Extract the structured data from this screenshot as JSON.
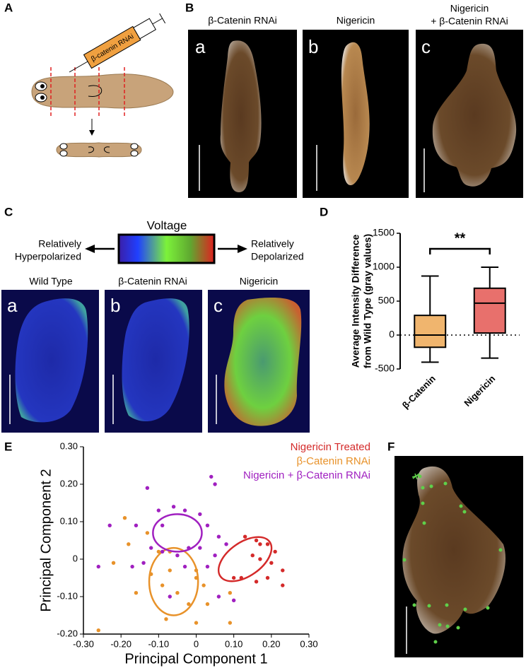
{
  "panels": {
    "A": {
      "label": "A",
      "syringe_label": "β-catenin RNAi"
    },
    "B": {
      "label": "B",
      "titles": [
        [
          "β-Catenin RNAi"
        ],
        [
          "Nigericin"
        ],
        [
          "Nigericin",
          "+ β-Catenin RNAi"
        ]
      ],
      "sublabels": [
        "a",
        "b",
        "c"
      ]
    },
    "C": {
      "label": "C",
      "bar_title": "Voltage",
      "left": [
        "Relatively",
        "Hyperpolarized"
      ],
      "right": [
        "Relatively",
        "Depolarized"
      ],
      "titles": [
        "Wild Type",
        "β-Catenin RNAi",
        "Nigericin"
      ],
      "sublabels": [
        "a",
        "b",
        "c"
      ]
    },
    "D": {
      "label": "D"
    },
    "E": {
      "label": "E"
    },
    "F": {
      "label": "F"
    }
  },
  "chart_data": [
    {
      "type": "box",
      "ylabel": [
        "Average Intensity Difference",
        "from Wild Type  (gray values)"
      ],
      "categories": [
        "β-Catenin",
        "Nigericin"
      ],
      "colors": [
        "#f0b56e",
        "#e8706c"
      ],
      "min": [
        -400,
        -340
      ],
      "q1": [
        -180,
        30
      ],
      "median": [
        0,
        470
      ],
      "q3": [
        290,
        690
      ],
      "max": [
        870,
        1000
      ],
      "annotation": "**",
      "ylim": [
        -500,
        1500
      ],
      "yticks": [
        -500,
        0,
        500,
        1000,
        1500
      ]
    },
    {
      "type": "scatter",
      "xlabel": "Principal Component 1",
      "ylabel": "Principal Component 2",
      "xlim": [
        -0.3,
        0.3
      ],
      "ylim": [
        -0.2,
        0.3
      ],
      "xticks": [
        {
          "value": -0.3,
          "label": "-0.30"
        },
        {
          "value": -0.2,
          "label": "-0.20"
        },
        {
          "value": -0.1,
          "label": "-0.10"
        },
        0,
        {
          "value": 0.1,
          "label": "0.10"
        },
        {
          "value": 0.2,
          "label": "0.20"
        },
        {
          "value": 0.3,
          "label": "0.30"
        }
      ],
      "yticks": [
        {
          "value": -0.2,
          "label": "-0.20"
        },
        {
          "value": -0.1,
          "label": "-0.10"
        },
        0,
        {
          "value": 0.1,
          "label": "0.10"
        },
        {
          "value": 0.2,
          "label": "0.20"
        },
        {
          "value": 0.3,
          "label": "0.30"
        }
      ],
      "series": [
        {
          "name": "Nigericin Treated",
          "color": "#d42a2a",
          "x": [
            0.13,
            0.16,
            0.19,
            0.21,
            0.2,
            0.17,
            0.17,
            0.15,
            0.1,
            0.12,
            0.16,
            0.23,
            0.23,
            0.19
          ],
          "values": [
            0.06,
            0.05,
            0.04,
            0.02,
            -0.01,
            0.04,
            0,
            0.01,
            -0.05,
            -0.05,
            -0.06,
            -0.03,
            -0.07,
            -0.05
          ],
          "ellipse": {
            "cx": 0.13,
            "cy": 0.0,
            "rx": 0.08,
            "ry": 0.045,
            "angle": -35
          }
        },
        {
          "name": "β-Catenin RNAi",
          "color": "#e8922a",
          "x": [
            -0.26,
            -0.19,
            -0.22,
            -0.18,
            -0.13,
            -0.1,
            -0.12,
            -0.07,
            -0.05,
            -0.02,
            0.03,
            0.02,
            0,
            -0.07,
            -0.09,
            -0.08,
            0,
            0.09,
            -0.16,
            0,
            0.09
          ],
          "values": [
            -0.19,
            0.11,
            -0.01,
            0.04,
            0.07,
            0.02,
            -0.04,
            -0.03,
            -0.09,
            -0.12,
            -0.12,
            -0.07,
            -0.05,
            0.02,
            -0.07,
            -0.16,
            -0.17,
            -0.17,
            -0.09,
            -0.03,
            -0.09
          ],
          "ellipse": {
            "cx": -0.06,
            "cy": -0.06,
            "rx": 0.065,
            "ry": 0.09,
            "angle": 0
          }
        },
        {
          "name": "Nigericin + β-Catenin RNAi",
          "color": "#a020c0",
          "x": [
            -0.13,
            -0.1,
            -0.06,
            -0.03,
            0.04,
            0.05,
            -0.23,
            -0.16,
            -0.09,
            0.01,
            0.03,
            -0.12,
            -0.17,
            -0.09,
            0.06,
            -0.26,
            -0.14,
            0.01,
            -0.02,
            0.05,
            0.08,
            -0.03,
            0.03,
            -0.05,
            -0.07,
            0.06,
            0.1
          ],
          "values": [
            0.19,
            0.13,
            0.14,
            0.13,
            0.22,
            0.2,
            0.09,
            0.09,
            0.09,
            0.12,
            0.09,
            0.03,
            -0.02,
            0.02,
            0.06,
            -0.02,
            -0.01,
            0.03,
            0.03,
            0.01,
            0.04,
            -0.02,
            -0.02,
            0.01,
            -0.1,
            -0.1,
            -0.11
          ],
          "ellipse": {
            "cx": -0.05,
            "cy": 0.07,
            "rx": 0.065,
            "ry": 0.05,
            "angle": 0
          }
        }
      ]
    }
  ]
}
